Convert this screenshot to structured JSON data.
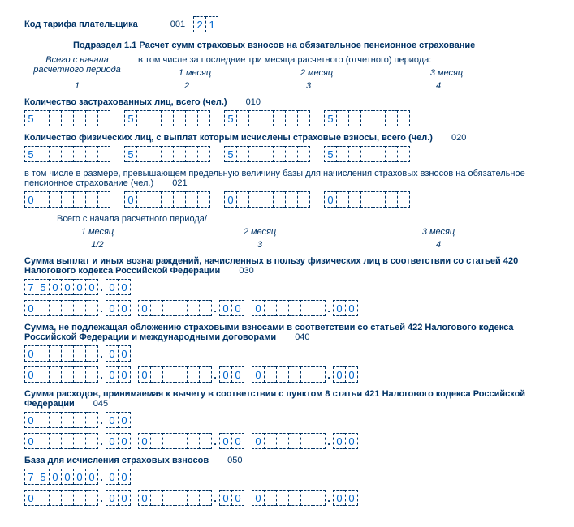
{
  "header": {
    "tariff_label": "Код тарифа плательщика",
    "tariff_code": "001",
    "tariff_cells": [
      "2",
      "1"
    ]
  },
  "subsection_title": "Подраздел 1.1 Расчет сумм страховых взносов на обязательное пенсионное страхование",
  "period_headers": {
    "total_label": "Всего с начала\nрасчетного периода",
    "including_label": "в том числе за последние три месяца расчетного (отчетного) периода:",
    "m1": "1 месяц",
    "m2": "2 месяц",
    "m3": "3 месяц",
    "n1": "1",
    "n2": "2",
    "n3": "3",
    "n4": "4"
  },
  "line010": {
    "label": "Количество застрахованных лиц, всего (чел.)",
    "code": "010",
    "total": [
      "5",
      "",
      "",
      "",
      "",
      "",
      ""
    ],
    "m1": [
      "5",
      "",
      "",
      "",
      "",
      "",
      ""
    ],
    "m2": [
      "5",
      "",
      "",
      "",
      "",
      "",
      ""
    ],
    "m3": [
      "5",
      "",
      "",
      "",
      "",
      "",
      ""
    ]
  },
  "line020": {
    "label": "Количество физических лиц, с выплат которым исчислены страховые взносы, всего (чел.)",
    "code": "020",
    "total": [
      "5",
      "",
      "",
      "",
      "",
      "",
      ""
    ],
    "m1": [
      "5",
      "",
      "",
      "",
      "",
      "",
      ""
    ],
    "m2": [
      "5",
      "",
      "",
      "",
      "",
      "",
      ""
    ],
    "m3": [
      "5",
      "",
      "",
      "",
      "",
      "",
      ""
    ]
  },
  "line021": {
    "label": "в том числе в размере, превышающем предельную величину базы для начисления страховых взносов на обязательное пенсионное страхование (чел.)",
    "code": "021",
    "total": [
      "0",
      "",
      "",
      "",
      "",
      "",
      ""
    ],
    "m1": [
      "0",
      "",
      "",
      "",
      "",
      "",
      ""
    ],
    "m2": [
      "0",
      "",
      "",
      "",
      "",
      "",
      ""
    ],
    "m3": [
      "0",
      "",
      "",
      "",
      "",
      "",
      ""
    ]
  },
  "period_headers2": {
    "total_label": "Всего с начала расчетного периода/",
    "m1": "1 месяц",
    "m2": "2 месяц",
    "m3": "3 месяц",
    "n12": "1/2",
    "n3": "3",
    "n4": "4"
  },
  "line030": {
    "label": "Сумма выплат и иных вознаграждений, начисленных в пользу физических лиц в соответствии со статьей 420 Налогового кодекса Российской Федерации",
    "code": "030",
    "total_int": [
      "7",
      "5",
      "0",
      "0",
      "0",
      "0"
    ],
    "total_dec": [
      "0",
      "0"
    ],
    "m1_int": [
      "0",
      "",
      "",
      "",
      "",
      ""
    ],
    "m1_dec": [
      "0",
      "0"
    ],
    "m2_int": [
      "0",
      "",
      "",
      "",
      "",
      ""
    ],
    "m2_dec": [
      "0",
      "0"
    ],
    "m3_int": [
      "0",
      "",
      "",
      "",
      "",
      ""
    ],
    "m3_dec": [
      "0",
      "0"
    ]
  },
  "line040": {
    "label": "Сумма, не подлежащая обложению страховыми взносами в соответствии со статьей 422 Налогового кодекса Российской Федерации и международными договорами",
    "code": "040",
    "total_int": [
      "0",
      "",
      "",
      "",
      "",
      ""
    ],
    "total_dec": [
      "0",
      "0"
    ],
    "m1_int": [
      "0",
      "",
      "",
      "",
      "",
      ""
    ],
    "m1_dec": [
      "0",
      "0"
    ],
    "m2_int": [
      "0",
      "",
      "",
      "",
      "",
      ""
    ],
    "m2_dec": [
      "0",
      "0"
    ],
    "m3_int": [
      "0",
      "",
      "",
      "",
      "",
      ""
    ],
    "m3_dec": [
      "0",
      "0"
    ]
  },
  "line045": {
    "label": "Сумма расходов, принимаемая к вычету в соответствии с пунктом  8 статьи 421 Налогового кодекса Российской Федерации",
    "code": "045",
    "total_int": [
      "0",
      "",
      "",
      "",
      "",
      ""
    ],
    "total_dec": [
      "0",
      "0"
    ],
    "m1_int": [
      "0",
      "",
      "",
      "",
      "",
      ""
    ],
    "m1_dec": [
      "0",
      "0"
    ],
    "m2_int": [
      "0",
      "",
      "",
      "",
      "",
      ""
    ],
    "m2_dec": [
      "0",
      "0"
    ],
    "m3_int": [
      "0",
      "",
      "",
      "",
      "",
      ""
    ],
    "m3_dec": [
      "0",
      "0"
    ]
  },
  "line050": {
    "label": "База для исчисления страховых взносов",
    "code": "050",
    "total_int": [
      "7",
      "5",
      "0",
      "0",
      "0",
      "0"
    ],
    "total_dec": [
      "0",
      "0"
    ],
    "m1_int": [
      "0",
      "",
      "",
      "",
      "",
      ""
    ],
    "m1_dec": [
      "0",
      "0"
    ],
    "m2_int": [
      "0",
      "",
      "",
      "",
      "",
      ""
    ],
    "m2_dec": [
      "0",
      "0"
    ],
    "m3_int": [
      "0",
      "",
      "",
      "",
      "",
      ""
    ],
    "m3_dec": [
      "0",
      "0"
    ]
  }
}
